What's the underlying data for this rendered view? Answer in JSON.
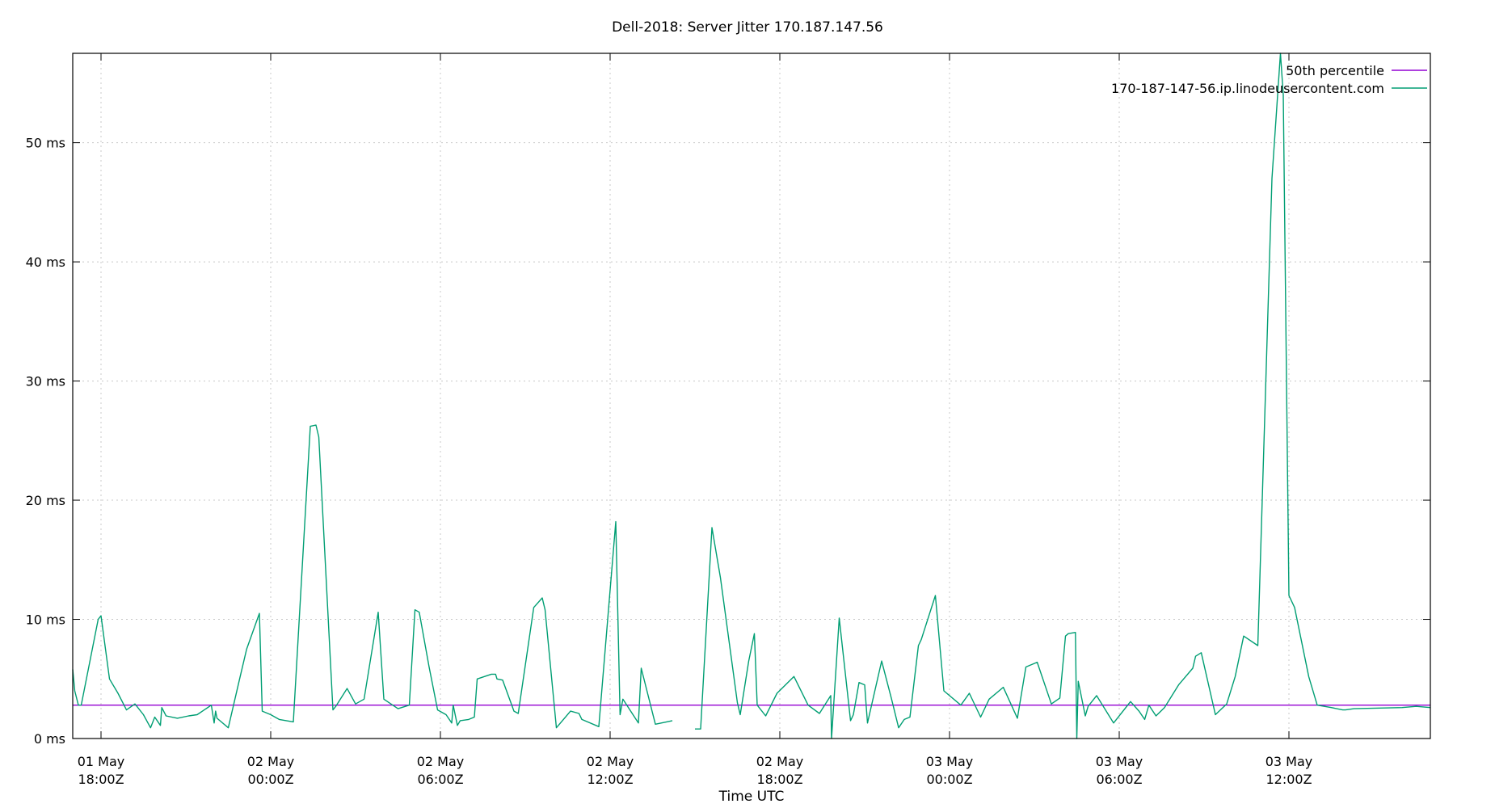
{
  "chart_data": {
    "type": "line",
    "title": "Dell-2018: Server Jitter 170.187.147.56",
    "xlabel": "Time UTC",
    "ylabel": "",
    "y_unit": "ms",
    "ylim": [
      0,
      57.5
    ],
    "yticks": [
      0,
      10,
      20,
      30,
      40,
      50
    ],
    "ytick_labels": [
      "0 ms",
      "10 ms",
      "20 ms",
      "30 ms",
      "40 ms",
      "50 ms"
    ],
    "xlim": [
      "2024-05-01T17:00Z",
      "2024-05-03T17:00Z"
    ],
    "xticks": [
      {
        "t": 18,
        "line1": "01 May",
        "line2": "18:00Z"
      },
      {
        "t": 24,
        "line1": "02 May",
        "line2": "00:00Z"
      },
      {
        "t": 30,
        "line1": "02 May",
        "line2": "06:00Z"
      },
      {
        "t": 36,
        "line1": "02 May",
        "line2": "12:00Z"
      },
      {
        "t": 42,
        "line1": "02 May",
        "line2": "18:00Z"
      },
      {
        "t": 48,
        "line1": "03 May",
        "line2": "00:00Z"
      },
      {
        "t": 54,
        "line1": "03 May",
        "line2": "06:00Z"
      },
      {
        "t": 60,
        "line1": "03 May",
        "line2": "12:00Z"
      }
    ],
    "x_range_hours": [
      17,
      65
    ],
    "grid": true,
    "legend_position": "top-right",
    "series": [
      {
        "name": "50th percentile",
        "color": "#9400d3",
        "points": [
          [
            17,
            2.8
          ],
          [
            65,
            2.8
          ]
        ]
      },
      {
        "name": "170-187-147-56.ip.linodeusercontent.com",
        "color": "#009e73",
        "segments": [
          [
            [
              17.0,
              5.8
            ],
            [
              17.07,
              4.0
            ],
            [
              17.2,
              2.8
            ],
            [
              17.3,
              2.8
            ],
            [
              17.9,
              10.0
            ],
            [
              18.0,
              10.3
            ],
            [
              18.3,
              5.0
            ],
            [
              18.6,
              3.8
            ],
            [
              18.9,
              2.4
            ],
            [
              19.2,
              2.9
            ],
            [
              19.5,
              2.0
            ],
            [
              19.75,
              0.9
            ],
            [
              19.9,
              1.8
            ],
            [
              20.1,
              1.1
            ],
            [
              20.15,
              2.6
            ],
            [
              20.3,
              1.9
            ],
            [
              20.7,
              1.7
            ],
            [
              21.1,
              1.9
            ],
            [
              21.4,
              2.0
            ],
            [
              21.9,
              2.8
            ],
            [
              22.0,
              1.3
            ],
            [
              22.05,
              2.3
            ],
            [
              22.1,
              1.7
            ],
            [
              22.5,
              0.9
            ],
            [
              22.9,
              5.0
            ],
            [
              23.15,
              7.5
            ],
            [
              23.6,
              10.5
            ],
            [
              23.7,
              2.3
            ],
            [
              24.0,
              2.0
            ],
            [
              24.3,
              1.6
            ],
            [
              24.8,
              1.4
            ],
            [
              25.4,
              26.2
            ],
            [
              25.6,
              26.3
            ],
            [
              25.7,
              25.3
            ],
            [
              26.2,
              2.4
            ],
            [
              26.3,
              2.7
            ],
            [
              26.7,
              4.2
            ],
            [
              27.0,
              2.9
            ],
            [
              27.3,
              3.3
            ],
            [
              27.8,
              10.6
            ],
            [
              28.0,
              3.3
            ],
            [
              28.5,
              2.5
            ],
            [
              28.9,
              2.8
            ],
            [
              29.1,
              10.8
            ],
            [
              29.25,
              10.6
            ],
            [
              29.6,
              6.0
            ],
            [
              29.9,
              2.4
            ],
            [
              30.2,
              2.0
            ],
            [
              30.4,
              1.3
            ],
            [
              30.45,
              2.8
            ],
            [
              30.6,
              1.1
            ],
            [
              30.7,
              1.5
            ],
            [
              31.0,
              1.6
            ],
            [
              31.2,
              1.8
            ],
            [
              31.3,
              5.0
            ],
            [
              31.8,
              5.4
            ],
            [
              31.95,
              5.4
            ],
            [
              32.0,
              5.0
            ],
            [
              32.2,
              4.9
            ],
            [
              32.6,
              2.3
            ],
            [
              32.75,
              2.1
            ],
            [
              33.3,
              11.0
            ],
            [
              33.6,
              11.8
            ],
            [
              33.7,
              10.8
            ],
            [
              34.1,
              0.9
            ],
            [
              34.6,
              2.3
            ],
            [
              34.9,
              2.1
            ],
            [
              35.0,
              1.6
            ],
            [
              35.6,
              1.0
            ],
            [
              36.2,
              18.2
            ],
            [
              36.35,
              2.0
            ],
            [
              36.45,
              3.3
            ],
            [
              37.0,
              1.3
            ],
            [
              37.1,
              5.9
            ],
            [
              37.6,
              1.2
            ],
            [
              38.0,
              1.4
            ],
            [
              38.2,
              1.5
            ]
          ],
          [
            [
              39.0,
              0.8
            ],
            [
              39.2,
              0.8
            ],
            [
              39.6,
              17.7
            ],
            [
              39.9,
              13.5
            ],
            [
              40.5,
              3.0
            ],
            [
              40.6,
              2.0
            ],
            [
              40.9,
              6.5
            ],
            [
              41.1,
              8.8
            ],
            [
              41.2,
              2.8
            ],
            [
              41.5,
              1.9
            ],
            [
              41.9,
              3.8
            ],
            [
              42.5,
              5.2
            ],
            [
              43.0,
              2.8
            ],
            [
              43.4,
              2.1
            ],
            [
              43.8,
              3.6
            ],
            [
              43.83,
              0.0
            ],
            [
              44.1,
              10.1
            ],
            [
              44.5,
              1.5
            ],
            [
              44.6,
              2.0
            ],
            [
              44.8,
              4.7
            ],
            [
              45.0,
              4.5
            ],
            [
              45.05,
              2.8
            ],
            [
              45.1,
              1.3
            ],
            [
              45.6,
              6.5
            ],
            [
              45.95,
              3.3
            ],
            [
              46.2,
              0.9
            ],
            [
              46.4,
              1.6
            ],
            [
              46.6,
              1.8
            ],
            [
              46.9,
              7.8
            ],
            [
              47.0,
              8.3
            ],
            [
              47.5,
              12.0
            ],
            [
              47.8,
              4.0
            ],
            [
              48.4,
              2.8
            ],
            [
              48.7,
              3.8
            ],
            [
              49.1,
              1.8
            ],
            [
              49.4,
              3.3
            ],
            [
              49.9,
              4.3
            ],
            [
              50.4,
              1.7
            ],
            [
              50.7,
              6.0
            ],
            [
              51.1,
              6.4
            ],
            [
              51.6,
              2.9
            ],
            [
              51.9,
              3.4
            ],
            [
              52.1,
              8.6
            ],
            [
              52.2,
              8.8
            ],
            [
              52.45,
              8.9
            ],
            [
              52.5,
              0.0
            ],
            [
              52.55,
              4.8
            ],
            [
              52.8,
              1.9
            ],
            [
              52.9,
              2.7
            ],
            [
              53.2,
              3.6
            ],
            [
              53.8,
              1.3
            ],
            [
              54.4,
              3.1
            ],
            [
              54.7,
              2.3
            ],
            [
              54.9,
              1.6
            ],
            [
              55.05,
              2.8
            ],
            [
              55.3,
              1.9
            ],
            [
              55.6,
              2.6
            ],
            [
              56.1,
              4.5
            ],
            [
              56.6,
              5.9
            ],
            [
              56.7,
              6.9
            ],
            [
              56.9,
              7.2
            ],
            [
              57.4,
              2.0
            ],
            [
              57.8,
              2.9
            ],
            [
              58.1,
              5.2
            ],
            [
              58.4,
              8.6
            ],
            [
              58.9,
              7.8
            ],
            [
              59.4,
              47.0
            ],
            [
              59.7,
              57.5
            ],
            [
              59.8,
              54.0
            ],
            [
              60.0,
              12.0
            ],
            [
              60.2,
              11.0
            ],
            [
              60.7,
              5.2
            ],
            [
              61.0,
              2.8
            ],
            [
              61.5,
              2.6
            ],
            [
              61.9,
              2.4
            ],
            [
              62.0,
              2.4
            ],
            [
              62.3,
              2.5
            ],
            [
              64.0,
              2.6
            ],
            [
              64.5,
              2.7
            ],
            [
              65.0,
              2.6
            ]
          ]
        ]
      }
    ]
  }
}
